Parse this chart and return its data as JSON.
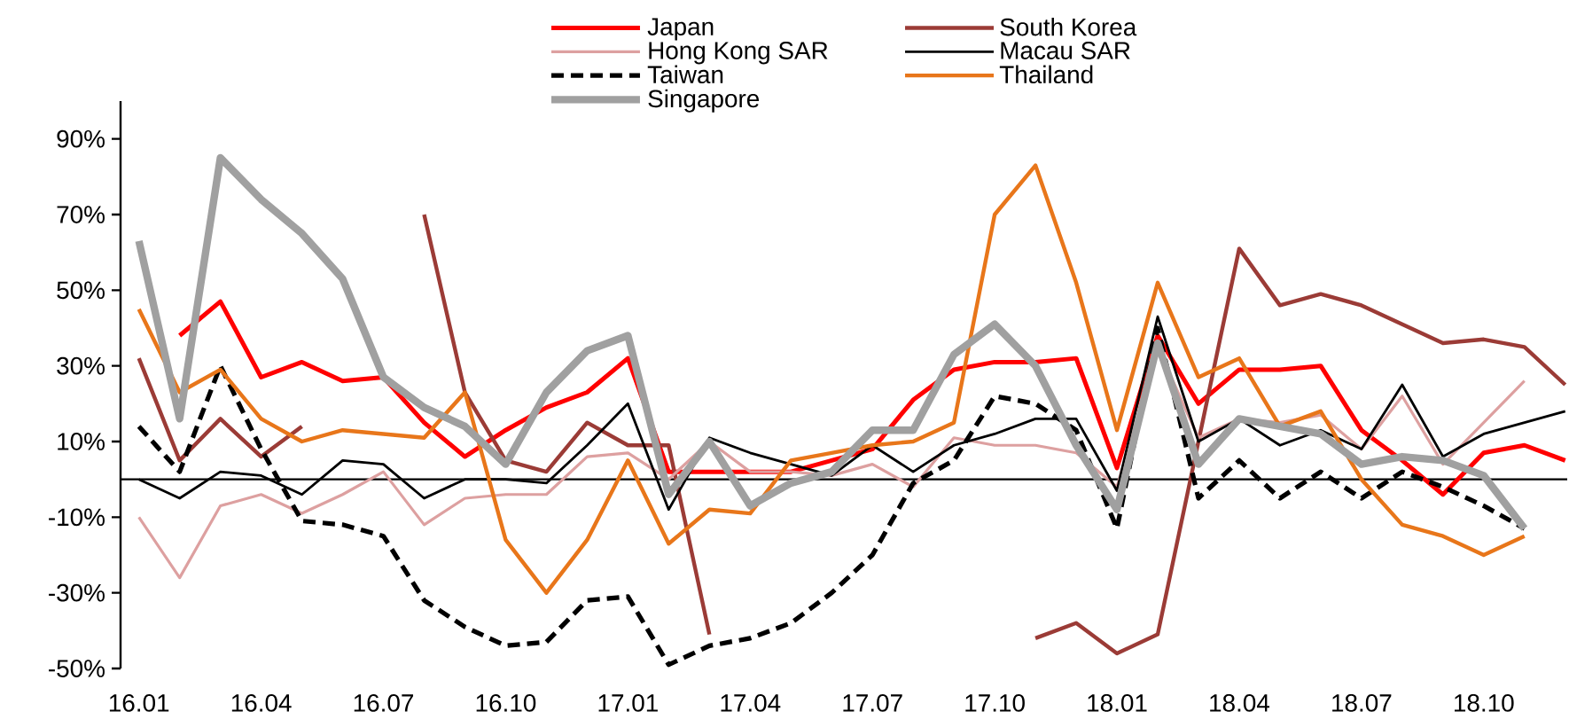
{
  "chart_data": {
    "type": "line",
    "categories": [
      "16.01",
      null,
      null,
      "16.04",
      null,
      null,
      "16.07",
      null,
      null,
      "16.10",
      null,
      null,
      "17.01",
      null,
      null,
      "17.04",
      null,
      null,
      "17.07",
      null,
      null,
      "17.10",
      null,
      null,
      "18.01",
      null,
      null,
      "18.04",
      null,
      null,
      "18.07",
      null,
      null,
      "18.10",
      null,
      null
    ],
    "series": [
      {
        "name": "Japan",
        "color": "#ff0000",
        "values": [
          null,
          38,
          47,
          27,
          31,
          26,
          27,
          15,
          6,
          13,
          19,
          23,
          32,
          2,
          2,
          2,
          2,
          5,
          8,
          21,
          29,
          31,
          31,
          32,
          3,
          38,
          20,
          29,
          29,
          30,
          13,
          5,
          -4,
          7,
          9,
          5
        ]
      },
      {
        "name": "South Korea",
        "color": "#9b3b36",
        "values": [
          32,
          5,
          16,
          6,
          14,
          null,
          null,
          70,
          23,
          5,
          2,
          15,
          9,
          9,
          -41,
          null,
          null,
          null,
          null,
          null,
          null,
          null,
          -42,
          -38,
          -46,
          -41,
          10,
          61,
          46,
          49,
          46,
          41,
          36,
          37,
          35,
          25
        ]
      },
      {
        "name": "Hong Kong SAR",
        "color": "#dda0a0",
        "values": [
          -10,
          -26,
          -7,
          -4,
          -9,
          -4,
          2,
          -12,
          -5,
          -4,
          -4,
          6,
          7,
          0,
          10,
          2,
          2,
          1,
          4,
          -2,
          11,
          9,
          9,
          7,
          -2,
          35,
          11,
          16,
          15,
          17,
          8,
          22,
          4,
          15,
          26,
          null
        ]
      },
      {
        "name": "Macau SAR",
        "color": "#000000",
        "values": [
          0,
          -5,
          2,
          1,
          -4,
          5,
          4,
          -5,
          0,
          0,
          -1,
          9,
          20,
          -8,
          11,
          7,
          4,
          1,
          9,
          2,
          9,
          12,
          16,
          16,
          -3,
          43,
          10,
          16,
          9,
          13,
          8,
          25,
          6,
          12,
          15,
          18
        ]
      },
      {
        "name": "Taiwan",
        "color": "#000000",
        "line_style": "dashed",
        "values": [
          14,
          2,
          30,
          8,
          -11,
          -12,
          -15,
          -32,
          -39,
          -44,
          -43,
          -32,
          -31,
          -49,
          -44,
          -42,
          -38,
          -30,
          -20,
          -1,
          5,
          22,
          20,
          13,
          -13,
          40,
          -5,
          5,
          -5,
          2,
          -5,
          2,
          -2,
          -7,
          -13,
          null
        ]
      },
      {
        "name": "Thailand",
        "color": "#e8761a",
        "values": [
          45,
          23,
          29,
          16,
          10,
          13,
          12,
          11,
          23,
          -16,
          -30,
          -16,
          5,
          -17,
          -8,
          -9,
          5,
          7,
          9,
          10,
          15,
          70,
          83,
          52,
          13,
          52,
          27,
          32,
          14,
          18,
          0,
          -12,
          -15,
          -20,
          -15,
          null
        ]
      },
      {
        "name": "Singapore",
        "color": "#a0a0a0",
        "values": [
          63,
          16,
          85,
          74,
          65,
          53,
          27,
          19,
          14,
          4,
          23,
          34,
          38,
          -4,
          10,
          -7,
          -1,
          2,
          13,
          13,
          33,
          41,
          30,
          9,
          -8,
          36,
          4,
          16,
          14,
          12,
          4,
          6,
          5,
          1,
          -13,
          null
        ]
      }
    ],
    "ylim": [
      -50,
      100
    ],
    "yticks": [
      {
        "value": -50,
        "label": "-50%"
      },
      {
        "value": -30,
        "label": "-30%"
      },
      {
        "value": -10,
        "label": "-10%"
      },
      {
        "value": 10,
        "label": "10%"
      },
      {
        "value": 30,
        "label": "30%"
      },
      {
        "value": 50,
        "label": "50%"
      },
      {
        "value": 70,
        "label": "70%"
      },
      {
        "value": 90,
        "label": "90%"
      }
    ],
    "ref_lines": [
      {
        "axis": "y",
        "value": 0,
        "color": "#000000"
      }
    ],
    "legend": "top",
    "grid": false
  }
}
